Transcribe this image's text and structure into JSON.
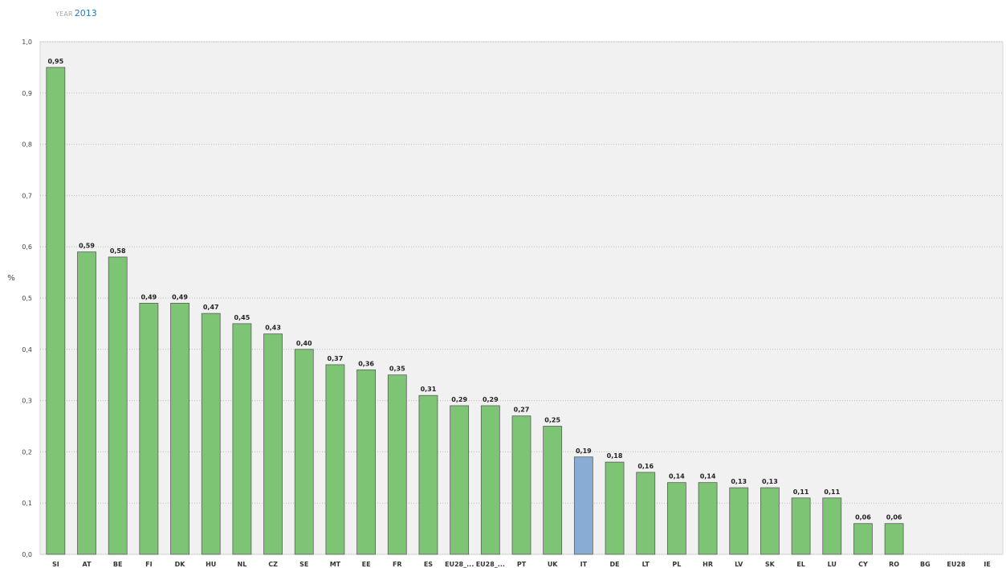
{
  "header": {
    "year_label": "YEAR",
    "year_value": "2013"
  },
  "colors": {
    "plot_background": "#f1f1f1",
    "bar_default": "#7dc574",
    "bar_highlight": "#89acd4",
    "bar_outline": "#5c5c5c",
    "gridline": "#bdbdbd"
  },
  "chart_data": {
    "type": "bar",
    "ylabel": "%",
    "ylim": [
      0,
      1.0
    ],
    "yticks": [
      "0,0",
      "0,1",
      "0,2",
      "0,3",
      "0,4",
      "0,5",
      "0,6",
      "0,7",
      "0,8",
      "0,9",
      "1,0"
    ],
    "grid": true,
    "highlighted_category": "IT",
    "categories": [
      "SI",
      "AT",
      "BE",
      "FI",
      "DK",
      "HU",
      "NL",
      "CZ",
      "SE",
      "MT",
      "EE",
      "FR",
      "ES",
      "EU28_...",
      "EU28_...",
      "PT",
      "UK",
      "IT",
      "DE",
      "LT",
      "PL",
      "HR",
      "LV",
      "SK",
      "EL",
      "LU",
      "CY",
      "RO",
      "BG",
      "EU28",
      "IE"
    ],
    "values": [
      0.95,
      0.59,
      0.58,
      0.49,
      0.49,
      0.47,
      0.45,
      0.43,
      0.4,
      0.37,
      0.36,
      0.35,
      0.31,
      0.29,
      0.29,
      0.27,
      0.25,
      0.19,
      0.18,
      0.16,
      0.14,
      0.14,
      0.13,
      0.13,
      0.11,
      0.11,
      0.06,
      0.06,
      null,
      null,
      null
    ],
    "value_labels": [
      "0,95",
      "0,59",
      "0,58",
      "0,49",
      "0,49",
      "0,47",
      "0,45",
      "0,43",
      "0,40",
      "0,37",
      "0,36",
      "0,35",
      "0,31",
      "0,29",
      "0,29",
      "0,27",
      "0,25",
      "0,19",
      "0,18",
      "0,16",
      "0,14",
      "0,14",
      "0,13",
      "0,13",
      "0,11",
      "0,11",
      "0,06",
      "0,06",
      "",
      "",
      ""
    ]
  }
}
